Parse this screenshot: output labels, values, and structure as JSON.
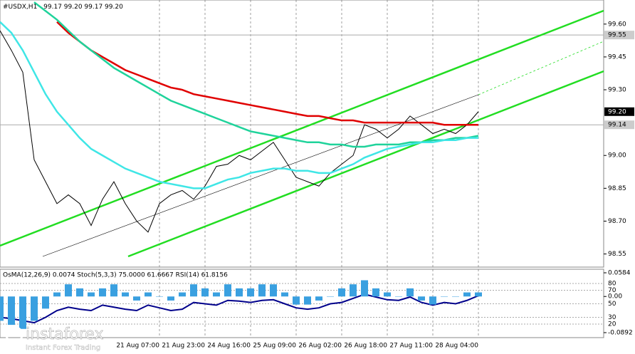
{
  "chart_data": {
    "type": "line",
    "title": "#USDX,H1",
    "ohlc_text": "99.17 99.20 99.17 99.20",
    "categories": [
      null,
      null,
      null,
      null,
      null,
      null,
      null,
      null,
      null,
      null,
      null,
      null,
      null,
      null,
      "21 Aug 07:00",
      null,
      null,
      null,
      "21 Aug 23:00",
      null,
      null,
      null,
      "24 Aug 16:00",
      null,
      null,
      null,
      "25 Aug 09:00",
      null,
      null,
      null,
      "26 Aug 02:00",
      null,
      null,
      null,
      "26 Aug 18:00",
      null,
      null,
      null,
      "27 Aug 11:00",
      null,
      null,
      null,
      "28 Aug 04:00"
    ],
    "ylim": [
      98.49,
      99.71
    ],
    "yticks": [
      {
        "value": 99.6,
        "label": "99.60"
      },
      {
        "value": 99.45,
        "label": "99.45"
      },
      {
        "value": 99.3,
        "label": "99.30"
      },
      {
        "value": 99.0,
        "label": "99.00"
      },
      {
        "value": 98.85,
        "label": "98.85"
      },
      {
        "value": 98.7,
        "label": "98.70"
      },
      {
        "value": 98.55,
        "label": "98.55"
      }
    ],
    "levels": [
      {
        "value": 99.55,
        "label": "99.55"
      },
      {
        "value": 99.14,
        "label": "99.14"
      }
    ],
    "current_price": {
      "value": 99.2,
      "label": "99.20"
    },
    "grid": true,
    "series": [
      {
        "name": "Price",
        "color": "#000000",
        "values": [
          99.57,
          99.48,
          99.38,
          98.98,
          98.88,
          98.78,
          98.82,
          98.78,
          98.68,
          98.8,
          98.88,
          98.78,
          98.7,
          98.65,
          98.78,
          98.82,
          98.84,
          98.8,
          98.86,
          98.95,
          98.96,
          99.0,
          98.98,
          99.02,
          99.06,
          98.98,
          98.9,
          98.88,
          98.86,
          98.92,
          98.96,
          99.0,
          99.14,
          99.12,
          99.08,
          99.12,
          99.18,
          99.14,
          99.1,
          99.12,
          99.1,
          99.14,
          99.2
        ]
      },
      {
        "name": "MA slow",
        "color": "#e00000",
        "values": [
          null,
          null,
          null,
          null,
          null,
          99.61,
          99.56,
          99.52,
          99.48,
          99.45,
          99.42,
          99.39,
          99.37,
          99.35,
          99.33,
          99.31,
          99.3,
          99.28,
          99.27,
          99.26,
          99.25,
          99.24,
          99.23,
          99.22,
          99.21,
          99.2,
          99.19,
          99.18,
          99.18,
          99.17,
          99.16,
          99.16,
          99.15,
          99.15,
          99.15,
          99.15,
          99.15,
          99.15,
          99.15,
          99.14,
          99.14,
          99.14,
          99.14
        ]
      },
      {
        "name": "MA mid",
        "color": "#1fd39b",
        "values": [
          null,
          null,
          null,
          99.7,
          99.66,
          99.62,
          99.57,
          99.52,
          99.48,
          99.44,
          99.4,
          99.37,
          99.34,
          99.31,
          99.28,
          99.25,
          99.23,
          99.21,
          99.19,
          99.17,
          99.15,
          99.13,
          99.11,
          99.1,
          99.09,
          99.08,
          99.07,
          99.06,
          99.06,
          99.05,
          99.05,
          99.04,
          99.04,
          99.05,
          99.05,
          99.05,
          99.06,
          99.06,
          99.07,
          99.07,
          99.08,
          99.08,
          99.09
        ]
      },
      {
        "name": "MA fast",
        "color": "#3fe6e6",
        "values": [
          99.61,
          99.56,
          99.48,
          99.38,
          99.28,
          99.2,
          99.14,
          99.08,
          99.03,
          99.0,
          98.97,
          98.94,
          98.92,
          98.9,
          98.88,
          98.87,
          98.86,
          98.85,
          98.85,
          98.87,
          98.89,
          98.9,
          98.92,
          98.93,
          98.94,
          98.94,
          98.93,
          98.93,
          98.92,
          98.92,
          98.94,
          98.96,
          98.99,
          99.01,
          99.03,
          99.04,
          99.05,
          99.06,
          99.06,
          99.07,
          99.07,
          99.08,
          99.08
        ]
      }
    ],
    "indicator": {
      "title": "OsMA(12,26,9) 0.0074 Stoch(5,3,3) 75.0000 61.6667 RSI(14) 61.8156",
      "ylim": [
        0,
        100
      ],
      "yticks": [
        80,
        70,
        50,
        30,
        20
      ],
      "y2lim": [
        -0.0892,
        0.0584
      ],
      "y2ticks": [
        {
          "value": 0.0584,
          "label": "0.0584"
        },
        {
          "value": 0,
          "label": "0.00"
        },
        {
          "value": -0.0892,
          "label": "-0.0892"
        }
      ],
      "series": [
        {
          "name": "RSI(14)",
          "color": "#00008b",
          "values": [
            30,
            28,
            25,
            22,
            30,
            40,
            45,
            42,
            40,
            48,
            45,
            42,
            40,
            48,
            44,
            40,
            42,
            52,
            50,
            48,
            55,
            54,
            52,
            55,
            56,
            50,
            44,
            42,
            44,
            50,
            52,
            58,
            64,
            60,
            56,
            55,
            60,
            52,
            48,
            52,
            50,
            55,
            62
          ]
        },
        {
          "name": "OsMA(12,26,9)",
          "color": "#3aa0e0",
          "axis": "y2",
          "values": [
            -0.06,
            -0.07,
            -0.08,
            -0.06,
            -0.03,
            0.01,
            0.03,
            0.02,
            0.01,
            0.02,
            0.03,
            0.01,
            -0.01,
            0.01,
            0.0,
            -0.01,
            0.01,
            0.03,
            0.02,
            0.01,
            0.03,
            0.02,
            0.02,
            0.03,
            0.03,
            0.01,
            -0.02,
            -0.02,
            -0.01,
            0.0,
            0.02,
            0.03,
            0.04,
            0.02,
            0.01,
            0.0,
            0.02,
            -0.01,
            -0.02,
            0.0,
            0.0,
            0.01,
            0.01
          ]
        }
      ]
    },
    "logo": {
      "name": "instaforex",
      "tagline": "Instant Forex Trading"
    }
  }
}
